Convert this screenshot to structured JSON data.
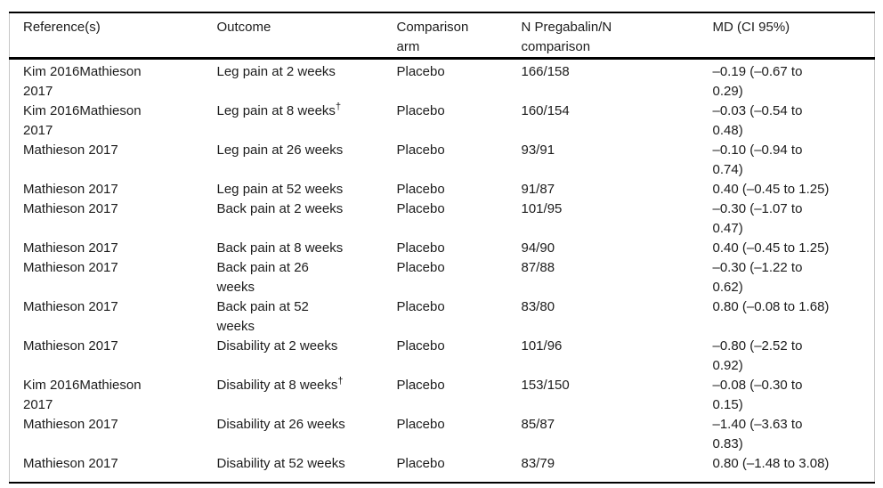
{
  "theme": {
    "background": "#ffffff",
    "text_color": "#1c1c1c",
    "heavy_rule_color": "#000000",
    "light_rule_color": "#c8c8c8"
  },
  "table": {
    "columns": [
      "Reference(s)",
      "Outcome",
      "Comparison arm",
      "N Pregabalin/N comparison",
      "MD (CI 95%)"
    ],
    "rows": [
      {
        "reference": "Kim 2016Mathieson 2017",
        "outcome": "Leg pain at 2 weeks",
        "outcome_sup": "",
        "comparison_arm": "Placebo",
        "n": "166/158",
        "md": "–0.19 (–0.67 to 0.29)"
      },
      {
        "reference": "Kim 2016Mathieson 2017",
        "outcome": "Leg pain at 8 weeks",
        "outcome_sup": "†",
        "comparison_arm": "Placebo",
        "n": "160/154",
        "md": "–0.03 (–0.54 to 0.48)"
      },
      {
        "reference": "Mathieson 2017",
        "outcome": "Leg pain at 26 weeks",
        "outcome_sup": "",
        "comparison_arm": "Placebo",
        "n": "93/91",
        "md": "–0.10 (–0.94 to 0.74)"
      },
      {
        "reference": "Mathieson 2017",
        "outcome": "Leg pain at 52 weeks",
        "outcome_sup": "",
        "comparison_arm": "Placebo",
        "n": "91/87",
        "md": "0.40 (–0.45 to 1.25)"
      },
      {
        "reference": "Mathieson 2017",
        "outcome": "Back pain at 2 weeks",
        "outcome_sup": "",
        "comparison_arm": "Placebo",
        "n": "101/95",
        "md": "–0.30 (–1.07 to 0.47)"
      },
      {
        "reference": "Mathieson 2017",
        "outcome": "Back pain at 8 weeks",
        "outcome_sup": "",
        "comparison_arm": "Placebo",
        "n": "94/90",
        "md": "0.40 (–0.45 to 1.25)"
      },
      {
        "reference": "Mathieson 2017",
        "outcome": "Back pain at 26 weeks",
        "outcome_sup": "",
        "comparison_arm": "Placebo",
        "n": "87/88",
        "md": "–0.30 (–1.22 to 0.62)"
      },
      {
        "reference": "Mathieson 2017",
        "outcome": "Back pain at 52 weeks",
        "outcome_sup": "",
        "comparison_arm": "Placebo",
        "n": "83/80",
        "md": "0.80 (–0.08 to 1.68)"
      },
      {
        "reference": "Mathieson 2017",
        "outcome": "Disability at 2 weeks",
        "outcome_sup": "",
        "comparison_arm": "Placebo",
        "n": "101/96",
        "md": "–0.80 (–2.52 to 0.92)"
      },
      {
        "reference": "Kim 2016Mathieson 2017",
        "outcome": "Disability at 8 weeks",
        "outcome_sup": "†",
        "comparison_arm": "Placebo",
        "n": "153/150",
        "md": "–0.08 (–0.30 to 0.15)"
      },
      {
        "reference": "Mathieson 2017",
        "outcome": "Disability at 26 weeks",
        "outcome_sup": "",
        "comparison_arm": "Placebo",
        "n": "85/87",
        "md": "–1.40 (–3.63 to 0.83)"
      },
      {
        "reference": "Mathieson 2017",
        "outcome": "Disability at 52 weeks",
        "outcome_sup": "",
        "comparison_arm": "Placebo",
        "n": "83/79",
        "md": "0.80 (–1.48 to 3.08)"
      }
    ]
  }
}
